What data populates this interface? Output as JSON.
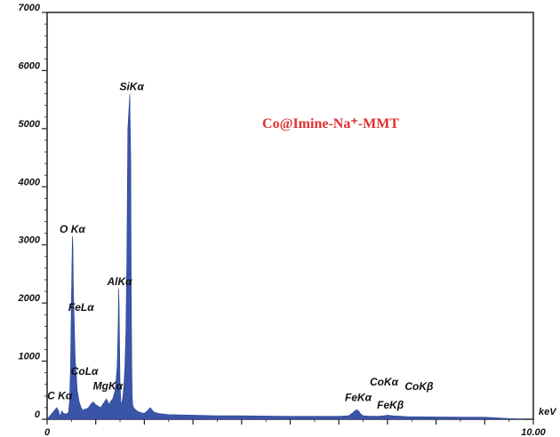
{
  "chart_data": {
    "type": "area",
    "title": "Co@Imine-Na⁺-MMT",
    "title_color": "#e03030",
    "series_color": "#3a55a8",
    "xlabel": "keV",
    "ylabel": "",
    "xlim": [
      0,
      10
    ],
    "ylim": [
      0,
      7000
    ],
    "y_ticks": [
      0,
      1000,
      2000,
      3000,
      4000,
      5000,
      6000,
      7000
    ],
    "y_tick_labels": [
      "0",
      "1000",
      "2000",
      "3000",
      "4000",
      "5000",
      "6000",
      "7000"
    ],
    "x_ticks": [
      0,
      10
    ],
    "x_tick_labels": [
      "0",
      "10.00"
    ],
    "grid": false,
    "legend": "none",
    "spectrum": {
      "x": [
        0.0,
        0.1,
        0.2,
        0.24,
        0.26,
        0.28,
        0.3,
        0.34,
        0.4,
        0.44,
        0.46,
        0.48,
        0.5,
        0.52,
        0.53,
        0.54,
        0.56,
        0.58,
        0.6,
        0.62,
        0.66,
        0.7,
        0.74,
        0.76,
        0.78,
        0.8,
        0.85,
        0.9,
        0.95,
        1.0,
        1.1,
        1.18,
        1.22,
        1.25,
        1.28,
        1.3,
        1.35,
        1.4,
        1.44,
        1.46,
        1.47,
        1.48,
        1.49,
        1.5,
        1.52,
        1.54,
        1.56,
        1.58,
        1.6,
        1.62,
        1.64,
        1.66,
        1.7,
        1.72,
        1.73,
        1.74,
        1.75,
        1.76,
        1.78,
        1.8,
        1.84,
        1.9,
        2.0,
        2.08,
        2.12,
        2.15,
        2.2,
        2.3,
        2.5,
        3.0,
        3.5,
        4.0,
        4.5,
        5.0,
        5.5,
        6.0,
        6.2,
        6.3,
        6.35,
        6.4,
        6.45,
        6.5,
        6.6,
        6.8,
        6.93,
        7.0,
        7.1,
        7.4,
        8.0,
        9.0,
        9.8
      ],
      "y": [
        0,
        100,
        200,
        140,
        60,
        80,
        140,
        100,
        90,
        120,
        300,
        900,
        2000,
        3150,
        3000,
        2300,
        1650,
        1000,
        800,
        500,
        300,
        200,
        150,
        160,
        180,
        170,
        200,
        260,
        300,
        250,
        200,
        300,
        350,
        300,
        250,
        300,
        350,
        500,
        900,
        1600,
        2250,
        2000,
        1300,
        600,
        250,
        300,
        400,
        600,
        900,
        1500,
        2800,
        5000,
        5600,
        4500,
        2500,
        1000,
        400,
        250,
        200,
        180,
        150,
        120,
        100,
        160,
        200,
        170,
        120,
        100,
        80,
        70,
        60,
        60,
        55,
        50,
        50,
        50,
        60,
        120,
        160,
        150,
        90,
        60,
        55,
        50,
        60,
        70,
        60,
        45,
        40,
        35,
        0
      ]
    },
    "peak_labels": [
      {
        "text": "O Kα",
        "x": 0.52,
        "y": 3150
      },
      {
        "text": "FeLα",
        "x": 0.7,
        "y": 1800
      },
      {
        "text": "CoLα",
        "x": 0.77,
        "y": 700
      },
      {
        "text": "C Kα",
        "x": 0.26,
        "y": 280
      },
      {
        "text": "MgKα",
        "x": 1.25,
        "y": 450
      },
      {
        "text": "AlKα",
        "x": 1.49,
        "y": 2250
      },
      {
        "text": "SiKα",
        "x": 1.74,
        "y": 5600
      },
      {
        "text": "FeKα",
        "x": 6.4,
        "y": 250
      },
      {
        "text": "FeKβ",
        "x": 7.06,
        "y": 120
      },
      {
        "text": "CoKα",
        "x": 6.93,
        "y": 520
      },
      {
        "text": "CoKβ",
        "x": 7.65,
        "y": 440
      }
    ]
  }
}
